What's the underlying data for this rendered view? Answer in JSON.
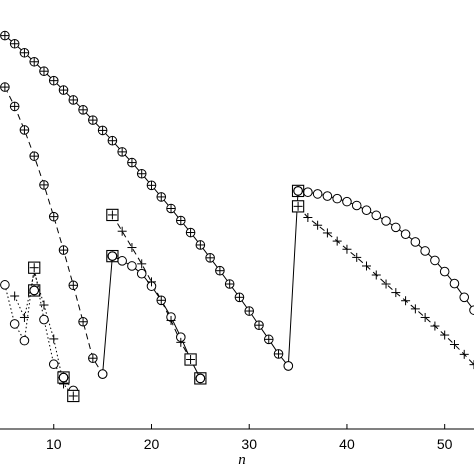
{
  "chart_data": {
    "type": "line",
    "title": "",
    "xlabel": "n",
    "ylabel": "",
    "xlim": [
      4.5,
      53
    ],
    "ylim": [
      0,
      1
    ],
    "grid": false,
    "x_ticks": [
      10,
      20,
      30,
      40,
      50
    ],
    "x_tick_labels": [
      "10",
      "20",
      "30",
      "40",
      "50"
    ],
    "series": [
      {
        "line_style": "solid",
        "marker": "circle-plus",
        "x": [
          5,
          6,
          7,
          8,
          9,
          10,
          11,
          12,
          13,
          14,
          15,
          16,
          17,
          18,
          19,
          20,
          21,
          22,
          23,
          24,
          25,
          26,
          27,
          28,
          29,
          30,
          31,
          32,
          33,
          34
        ],
        "y": [
          0.917,
          0.898,
          0.877,
          0.856,
          0.834,
          0.812,
          0.79,
          0.767,
          0.744,
          0.72,
          0.696,
          0.672,
          0.646,
          0.621,
          0.595,
          0.568,
          0.541,
          0.514,
          0.486,
          0.458,
          0.429,
          0.399,
          0.369,
          0.338,
          0.307,
          0.275,
          0.242,
          0.209,
          0.175,
          0.147
        ]
      },
      {
        "line_style": "dashed",
        "marker": "circle-plus",
        "x": [
          5,
          6,
          7,
          8,
          9,
          10,
          11,
          12,
          13,
          14,
          15
        ],
        "y": [
          0.797,
          0.752,
          0.697,
          0.636,
          0.569,
          0.495,
          0.417,
          0.335,
          0.25,
          0.165,
          0.128
        ]
      },
      {
        "line_style": "solid",
        "marker": "circle",
        "x": [
          15,
          16,
          17,
          18,
          19,
          20,
          21,
          22,
          23,
          24,
          25
        ],
        "y": [
          0.128,
          0.403,
          0.392,
          0.38,
          0.362,
          0.333,
          0.3,
          0.261,
          0.214,
          0.162,
          0.118
        ]
      },
      {
        "line_style": "dashed",
        "marker": "plus",
        "x": [
          16,
          17,
          18,
          19,
          20,
          21,
          22,
          23,
          24
        ],
        "y": [
          0.499,
          0.461,
          0.423,
          0.385,
          0.343,
          0.3,
          0.253,
          0.202,
          0.162
        ]
      },
      {
        "line_style": "dotted",
        "marker": "circle",
        "x": [
          5,
          6,
          7,
          8,
          9,
          10,
          11,
          12
        ],
        "y": [
          0.336,
          0.245,
          0.206,
          0.376,
          0.255,
          0.151,
          0.12,
          0.09
        ]
      },
      {
        "line_style": "dotted",
        "marker": "plus",
        "x": [
          6,
          7,
          8,
          9,
          10,
          11,
          12
        ],
        "y": [
          0.31,
          0.26,
          0.366,
          0.289,
          0.21,
          0.105,
          0.077
        ]
      },
      {
        "line_style": "solid",
        "marker": "circle",
        "x": [
          34,
          35,
          36,
          37,
          38,
          39,
          40,
          41,
          42,
          43,
          44,
          45,
          46,
          47,
          48,
          49,
          50,
          51,
          52,
          53
        ],
        "y": [
          0.147,
          0.555,
          0.552,
          0.548,
          0.543,
          0.537,
          0.53,
          0.521,
          0.51,
          0.498,
          0.485,
          0.47,
          0.454,
          0.436,
          0.415,
          0.393,
          0.367,
          0.339,
          0.307,
          0.277
        ]
      },
      {
        "line_style": "dashed",
        "marker": "plus",
        "x": [
          35,
          36,
          37,
          38,
          39,
          40,
          41,
          42,
          43,
          44,
          45,
          46,
          47,
          48,
          49,
          50,
          51,
          52,
          53
        ],
        "y": [
          0.519,
          0.493,
          0.475,
          0.457,
          0.438,
          0.419,
          0.4,
          0.38,
          0.359,
          0.338,
          0.318,
          0.299,
          0.28,
          0.26,
          0.24,
          0.219,
          0.197,
          0.174,
          0.15
        ]
      },
      {
        "line_style": "none",
        "marker": "boxed-circle",
        "x": [
          8,
          11,
          16,
          25,
          35
        ],
        "y": [
          0.323,
          0.12,
          0.403,
          0.118,
          0.555
        ]
      },
      {
        "line_style": "none",
        "marker": "boxed-plus",
        "x": [
          8,
          12,
          16,
          24,
          35
        ],
        "y": [
          0.376,
          0.077,
          0.499,
          0.162,
          0.519
        ]
      }
    ]
  },
  "colors": {
    "ink": "#000000",
    "background": "#ffffff"
  }
}
